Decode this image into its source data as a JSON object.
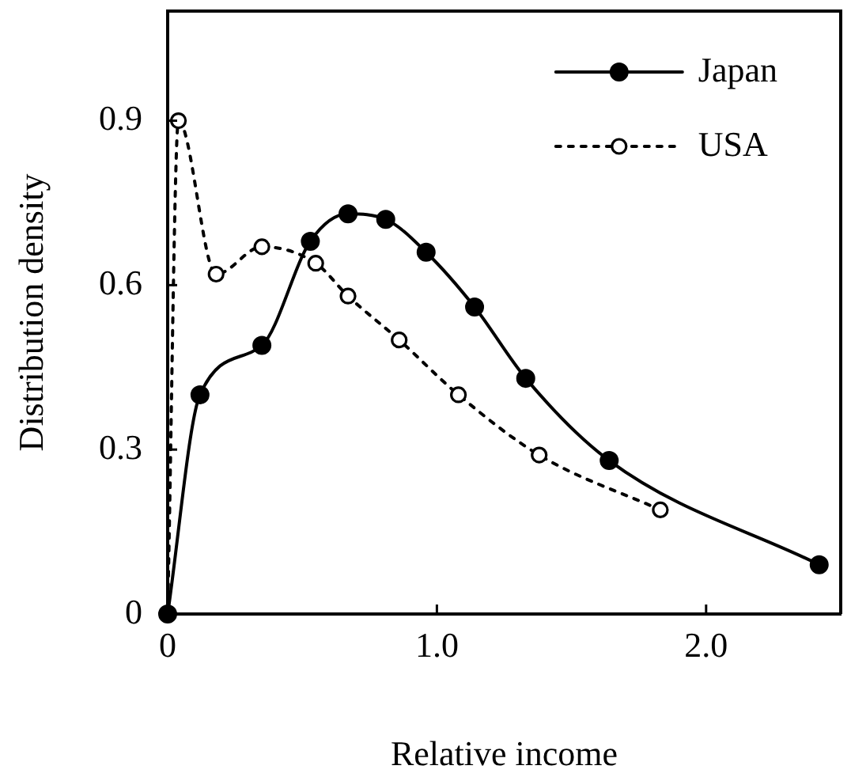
{
  "chart_data": {
    "type": "line",
    "xlabel": "Relative income",
    "ylabel": "Distribution density",
    "xlim": [
      0,
      2.5
    ],
    "xticks": [
      0,
      {
        "value": 1,
        "label": "1.0"
      },
      {
        "value": 2,
        "label": "2.0"
      }
    ],
    "ylim": [
      0,
      1.1
    ],
    "yticks": [
      0,
      0.3,
      0.6,
      0.9
    ],
    "legend": "top right",
    "marker": "circle",
    "series": [
      {
        "name": "Japan",
        "color": "#000000",
        "line_style": "solid",
        "x": [
          0,
          0.12,
          0.35,
          0.53,
          0.67,
          0.81,
          0.96,
          1.14,
          1.33,
          1.64,
          2.42
        ],
        "values": [
          0,
          0.4,
          0.49,
          0.68,
          0.73,
          0.72,
          0.66,
          0.56,
          0.43,
          0.28,
          0.09
        ]
      },
      {
        "name": "USA",
        "color": "#000000",
        "line_style": "dashed",
        "x": [
          0,
          0.04,
          0.18,
          0.35,
          0.55,
          0.67,
          0.86,
          1.08,
          1.38,
          1.83
        ],
        "values": [
          0,
          0.9,
          0.62,
          0.67,
          0.64,
          0.58,
          0.5,
          0.4,
          0.29,
          0.19
        ]
      }
    ]
  }
}
